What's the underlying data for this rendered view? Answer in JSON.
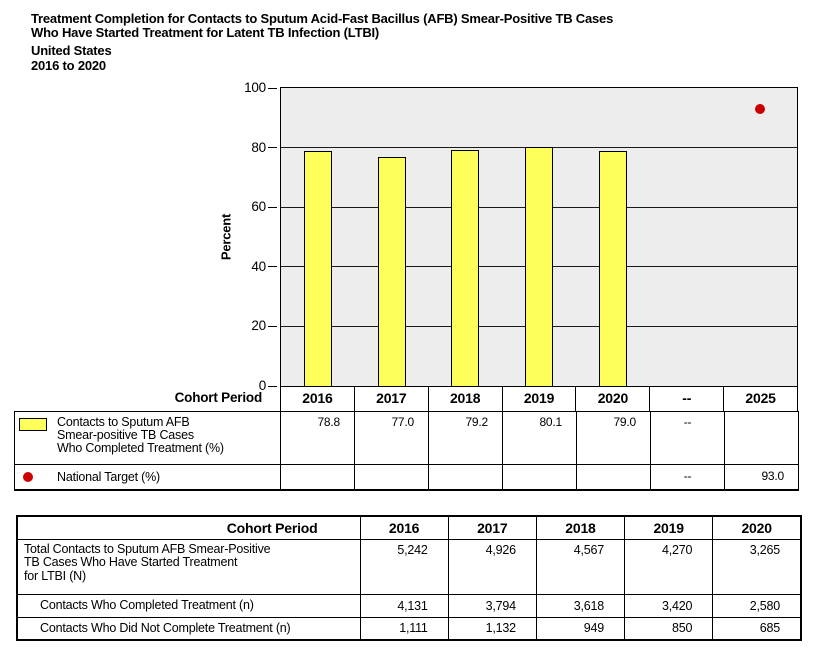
{
  "header": {
    "title_line1": "Treatment Completion for Contacts to Sputum Acid-Fast Bacillus (AFB) Smear-Positive TB Cases",
    "title_line2": "Who Have Started Treatment for Latent TB Infection (LTBI)",
    "region": "United States",
    "period": "2016 to 2020"
  },
  "chart_data": {
    "type": "bar",
    "title": "Treatment Completion for Contacts to Sputum Acid-Fast Bacillus (AFB) Smear-Positive TB Cases Who Have Started Treatment for Latent TB Infection (LTBI), United States, 2016 to 2020",
    "xlabel": "Cohort Period",
    "ylabel": "Percent",
    "ylim": [
      0,
      100
    ],
    "yticks": [
      0,
      20,
      40,
      60,
      80,
      100
    ],
    "grid": true,
    "plot_bg": "#EDEDED",
    "categories": [
      "2016",
      "2017",
      "2018",
      "2019",
      "2020",
      "--",
      "2025"
    ],
    "series": [
      {
        "name": "Contacts to Sputum AFB Smear-positive TB Cases Who Completed Treatment (%)",
        "type": "bar",
        "color": "#FFFF5C",
        "values": [
          78.8,
          77.0,
          79.2,
          80.1,
          79.0,
          null,
          null
        ]
      },
      {
        "name": "National Target (%)",
        "type": "point",
        "color": "#CC0000",
        "values": [
          null,
          null,
          null,
          null,
          null,
          null,
          93.0
        ]
      }
    ]
  },
  "legend_table": {
    "header_label": "Cohort Period",
    "columns": [
      "2016",
      "2017",
      "2018",
      "2019",
      "2020",
      "--",
      "2025"
    ],
    "rows": [
      {
        "swatch": "bar",
        "label_lines": [
          "Contacts to Sputum AFB",
          "Smear-positive TB Cases",
          "Who Completed Treatment (%)"
        ],
        "values": [
          "78.8",
          "77.0",
          "79.2",
          "80.1",
          "79.0",
          "--",
          ""
        ]
      },
      {
        "swatch": "dot",
        "label_lines": [
          "National Target (%)"
        ],
        "values": [
          "",
          "",
          "",
          "",
          "",
          "--",
          "93.0"
        ]
      }
    ]
  },
  "data_table": {
    "header_label": "Cohort Period",
    "columns": [
      "2016",
      "2017",
      "2018",
      "2019",
      "2020"
    ],
    "rows": [
      {
        "label_lines": [
          "Total Contacts to Sputum AFB Smear-Positive",
          "TB Cases Who Have Started Treatment",
          "for LTBI (N)"
        ],
        "indent": false,
        "row_class": "r1",
        "values": [
          "5,242",
          "4,926",
          "4,567",
          "4,270",
          "3,265"
        ]
      },
      {
        "label_lines": [
          "Contacts Who Completed Treatment (n)"
        ],
        "indent": true,
        "row_class": "r2",
        "values": [
          "4,131",
          "3,794",
          "3,618",
          "3,420",
          "2,580"
        ]
      },
      {
        "label_lines": [
          "Contacts Who Did Not Complete Treatment (n)"
        ],
        "indent": true,
        "row_class": "r3",
        "values": [
          "1,111",
          "1,132",
          "949",
          "850",
          "685"
        ]
      }
    ]
  },
  "colors": {
    "bar_fill": "#FFFF5C",
    "bar_border": "#000000",
    "target_dot": "#CC0000",
    "plot_bg": "#EDEDED",
    "grid_line": "#1A1A1A"
  }
}
